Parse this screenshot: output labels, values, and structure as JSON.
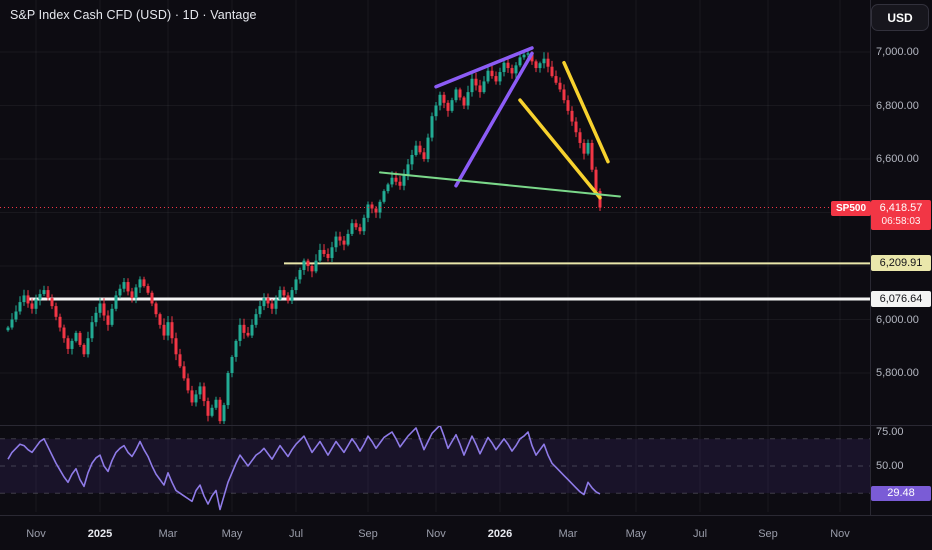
{
  "header": {
    "title": "S&P Index Cash CFD (USD) · 1D · Vantage",
    "currency_button": "USD"
  },
  "symbol": {
    "ticker": "SP500",
    "last_price": "6,418.57",
    "countdown": "06:58:03"
  },
  "colors": {
    "background": "#0d0c12",
    "up": "#22ab94",
    "down": "#f23645",
    "axis_text": "#b4b7c1",
    "rsi_line": "#8f7be8",
    "last_price_label": "#f23645"
  },
  "chart_data": {
    "type": "candlestick",
    "title": "S&P Index Cash CFD (USD) Daily with RSI",
    "legend_position": "none",
    "grid": true,
    "y_axis": {
      "range": [
        5560,
        7060
      ],
      "labels": [
        {
          "text": "7,000.00",
          "value": 7000
        },
        {
          "text": "6,800.00",
          "value": 6800
        },
        {
          "text": "6,600.00",
          "value": 6600
        },
        {
          "text": "6,000.00",
          "value": 6000
        },
        {
          "text": "5,800.00",
          "value": 5800
        }
      ]
    },
    "x_axis": {
      "labels": [
        {
          "text": "Nov",
          "i": 7
        },
        {
          "text": "2025",
          "i": 23,
          "year": true
        },
        {
          "text": "Mar",
          "i": 40
        },
        {
          "text": "May",
          "i": 56
        },
        {
          "text": "Jul",
          "i": 72
        },
        {
          "text": "Sep",
          "i": 90
        },
        {
          "text": "Nov",
          "i": 107
        },
        {
          "text": "2026",
          "i": 123,
          "year": true
        },
        {
          "text": "Mar",
          "i": 140
        },
        {
          "text": "May",
          "i": 157
        },
        {
          "text": "Jul",
          "i": 173
        },
        {
          "text": "Sep",
          "i": 190
        },
        {
          "text": "Nov",
          "i": 208
        }
      ]
    },
    "grid_prices": [
      7000,
      6800,
      6600,
      6400,
      6200,
      6000,
      5800
    ],
    "closes": [
      5970,
      6000,
      6030,
      6065,
      6090,
      6060,
      6040,
      6075,
      6095,
      6110,
      6080,
      6050,
      6010,
      5970,
      5930,
      5890,
      5920,
      5950,
      5905,
      5870,
      5930,
      5990,
      6025,
      6060,
      6015,
      5980,
      6040,
      6090,
      6115,
      6140,
      6105,
      6080,
      6120,
      6150,
      6125,
      6100,
      6060,
      6020,
      5980,
      5940,
      5990,
      5930,
      5870,
      5825,
      5780,
      5735,
      5690,
      5720,
      5750,
      5695,
      5640,
      5670,
      5700,
      5620,
      5680,
      5800,
      5860,
      5920,
      5980,
      5950,
      5940,
      5980,
      6020,
      6050,
      6080,
      6060,
      6040,
      6075,
      6110,
      6090,
      6070,
      6110,
      6150,
      6185,
      6220,
      6200,
      6180,
      6220,
      6260,
      6245,
      6230,
      6270,
      6310,
      6295,
      6280,
      6320,
      6360,
      6345,
      6330,
      6380,
      6430,
      6415,
      6400,
      6440,
      6480,
      6505,
      6530,
      6515,
      6500,
      6540,
      6580,
      6615,
      6650,
      6625,
      6600,
      6680,
      6760,
      6800,
      6840,
      6810,
      6780,
      6820,
      6860,
      6830,
      6800,
      6850,
      6900,
      6875,
      6850,
      6890,
      6930,
      6910,
      6890,
      6925,
      6960,
      6940,
      6920,
      6950,
      6980,
      6990,
      6995,
      6965,
      6940,
      6958,
      6975,
      6945,
      6910,
      6885,
      6860,
      6820,
      6780,
      6740,
      6700,
      6660,
      6620,
      6660,
      6560,
      6480,
      6418.57
    ],
    "rsi": [
      55,
      60,
      63,
      66,
      65,
      62,
      60,
      64,
      68,
      70,
      64,
      58,
      52,
      47,
      42,
      38,
      44,
      48,
      40,
      35,
      45,
      52,
      56,
      58,
      50,
      46,
      54,
      60,
      63,
      65,
      60,
      57,
      62,
      68,
      62,
      57,
      50,
      44,
      40,
      36,
      45,
      38,
      32,
      30,
      28,
      26,
      24,
      32,
      36,
      28,
      22,
      28,
      32,
      18,
      28,
      38,
      45,
      52,
      58,
      54,
      50,
      54,
      58,
      60,
      63,
      59,
      55,
      60,
      65,
      61,
      57,
      62,
      66,
      69,
      72,
      66,
      60,
      64,
      68,
      63,
      58,
      63,
      68,
      64,
      60,
      65,
      70,
      66,
      61,
      66,
      72,
      68,
      63,
      67,
      71,
      73,
      75,
      70,
      64,
      68,
      72,
      75,
      78,
      70,
      62,
      68,
      74,
      77,
      80,
      72,
      63,
      68,
      73,
      66,
      58,
      65,
      72,
      66,
      59,
      65,
      71,
      67,
      62,
      66,
      70,
      66,
      61,
      65,
      70,
      72,
      75,
      65,
      58,
      62,
      66,
      58,
      52,
      49,
      46,
      43,
      40,
      37,
      34,
      31,
      29,
      38,
      34,
      31,
      29.48
    ],
    "rsi_axis": {
      "labels": [
        {
          "text": "75.00",
          "value": 75
        },
        {
          "text": "50.00",
          "value": 50
        }
      ],
      "last": {
        "text": "29.48",
        "value": 29.48
      },
      "bands": {
        "upper": 70,
        "middle": 50,
        "lower": 30
      }
    },
    "last": {
      "value": 6418.57,
      "display": "6,418.57",
      "countdown": "06:58:03"
    },
    "levels": [
      {
        "label": "6,209.91",
        "price": 6209.91,
        "color": "#eae7ab",
        "line_width": 2,
        "from_index": 69
      },
      {
        "label": "6,076.64",
        "price": 6076.64,
        "color": "#f4f4f4",
        "line_width": 3,
        "from_index": 5
      }
    ],
    "drawings": [
      {
        "name": "purple-wedge-upper",
        "color": "#8c5cf6",
        "width": 3.5,
        "from": [
          107,
          6870
        ],
        "to": [
          131,
          7015
        ]
      },
      {
        "name": "purple-wedge-lower",
        "color": "#8c5cf6",
        "width": 3.5,
        "from": [
          112,
          6500
        ],
        "to": [
          131,
          6995
        ]
      },
      {
        "name": "yellow-trend-upper",
        "color": "#f7d22e",
        "width": 3.5,
        "from": [
          139,
          6960
        ],
        "to": [
          150,
          6590
        ]
      },
      {
        "name": "yellow-trend-lower",
        "color": "#f7d22e",
        "width": 3.5,
        "from": [
          128,
          6820
        ],
        "to": [
          148,
          6455
        ]
      },
      {
        "name": "green-trendline",
        "color": "#7bd88a",
        "width": 2,
        "from": [
          93,
          6550
        ],
        "to": [
          153,
          6460
        ]
      }
    ]
  }
}
